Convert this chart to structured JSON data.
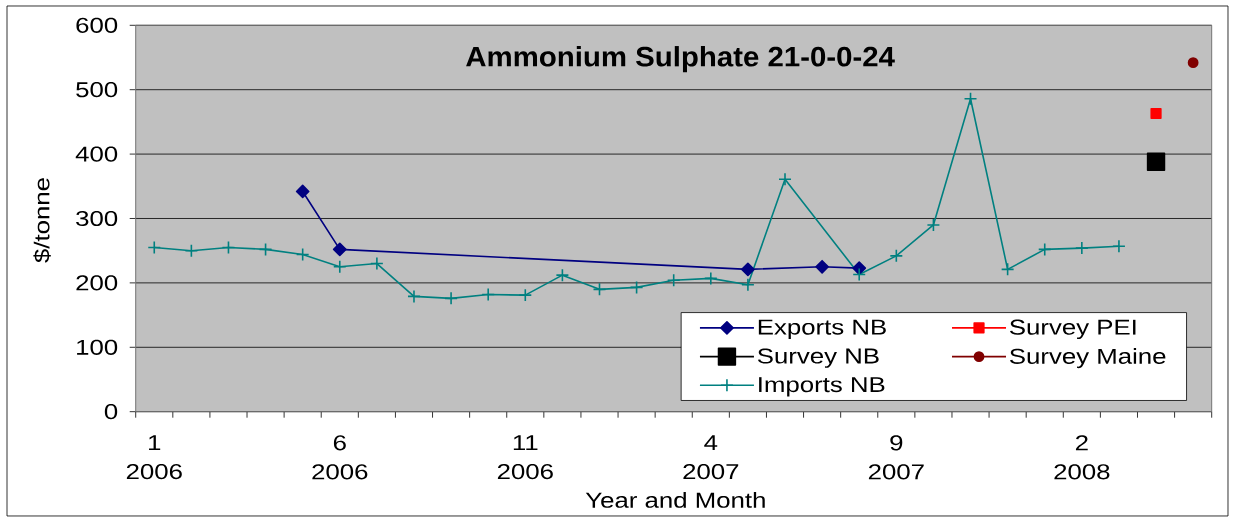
{
  "chart_data": {
    "type": "line",
    "title": "Ammonium Sulphate 21-0-0-24",
    "xlabel": "Year and Month",
    "ylabel": "$/tonne",
    "categories": [
      "1 2006",
      null,
      null,
      null,
      null,
      "6 2006",
      null,
      null,
      null,
      null,
      "11 2006",
      null,
      null,
      null,
      null,
      "4 2007",
      null,
      null,
      null,
      null,
      "9 2007",
      null,
      null,
      null,
      null,
      "2 2008",
      null,
      null,
      null
    ],
    "series": [
      {
        "name": "Exports NB",
        "color": "#000080",
        "marker": "diamond",
        "values": [
          null,
          null,
          null,
          null,
          342,
          252,
          null,
          null,
          null,
          null,
          null,
          null,
          null,
          null,
          null,
          null,
          221,
          null,
          225,
          223,
          null,
          null,
          null,
          null,
          null,
          null,
          null,
          null,
          null
        ]
      },
      {
        "name": "Survey PEI",
        "color": "#ff0000",
        "marker": "square",
        "values": [
          null,
          null,
          null,
          null,
          null,
          null,
          null,
          null,
          null,
          null,
          null,
          null,
          null,
          null,
          null,
          null,
          null,
          null,
          null,
          null,
          null,
          null,
          null,
          null,
          null,
          null,
          null,
          463,
          null
        ]
      },
      {
        "name": "Survey NB",
        "color": "#000000",
        "marker": "square",
        "values": [
          null,
          null,
          null,
          null,
          null,
          null,
          null,
          null,
          null,
          null,
          null,
          null,
          null,
          null,
          null,
          null,
          null,
          null,
          null,
          null,
          null,
          null,
          null,
          null,
          null,
          null,
          null,
          388,
          null
        ]
      },
      {
        "name": "Survey Maine",
        "color": "#800000",
        "marker": "circle",
        "values": [
          null,
          null,
          null,
          null,
          null,
          null,
          null,
          null,
          null,
          null,
          null,
          null,
          null,
          null,
          null,
          null,
          null,
          null,
          null,
          null,
          null,
          null,
          null,
          null,
          null,
          null,
          null,
          null,
          542
        ]
      },
      {
        "name": "Imports NB",
        "color": "#008080",
        "marker": "cross",
        "values": [
          255,
          250,
          255,
          252,
          244,
          225,
          230,
          179,
          176,
          182,
          181,
          212,
          190,
          193,
          204,
          207,
          197,
          361,
          null,
          213,
          242,
          290,
          486,
          221,
          252,
          254,
          257,
          null,
          null
        ]
      }
    ],
    "ylim": [
      0,
      600
    ],
    "yticks": [
      0,
      100,
      200,
      300,
      400,
      500,
      600
    ],
    "grid": "y",
    "legend": "bottom right",
    "line_style": "solid"
  }
}
